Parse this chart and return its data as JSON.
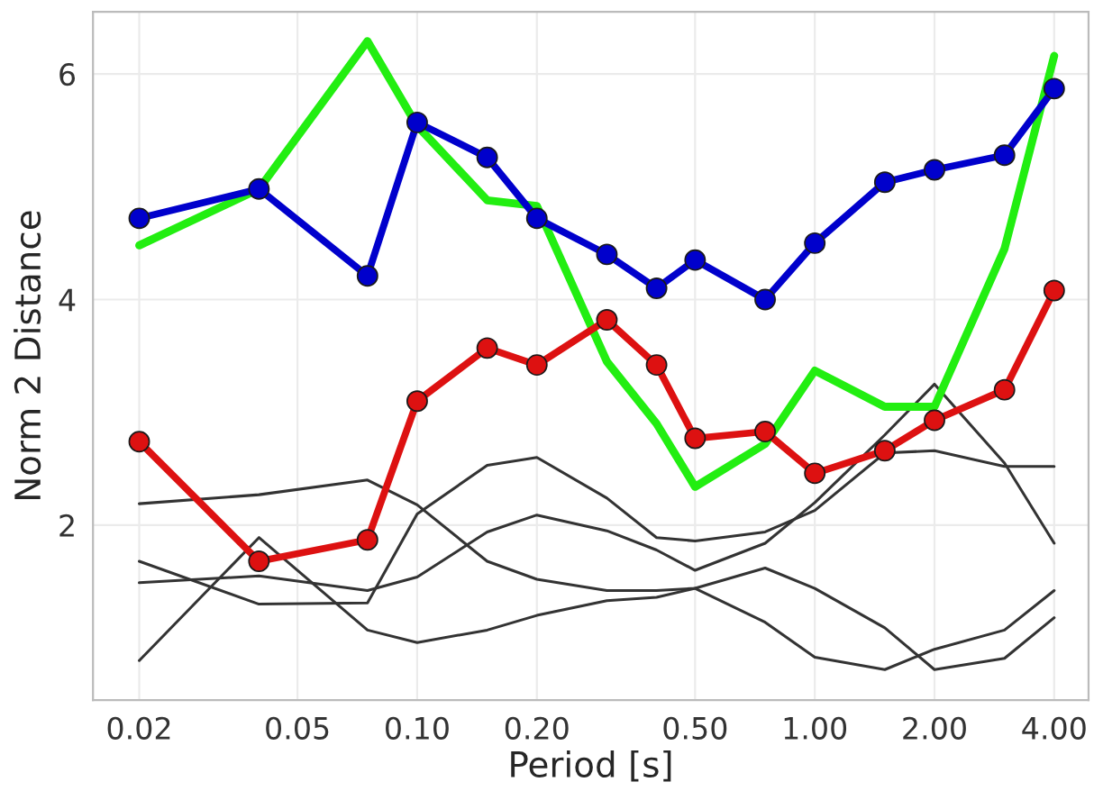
{
  "chart_data": {
    "type": "line",
    "xlabel": "Period [s]",
    "ylabel": "Norm 2 Distance",
    "x": [
      0.02,
      0.04,
      0.075,
      0.1,
      0.15,
      0.2,
      0.3,
      0.4,
      0.5,
      0.75,
      1.0,
      1.5,
      2.0,
      3.0,
      4.0
    ],
    "log": "x",
    "xlim": [
      0.0153,
      4.88
    ],
    "ylim": [
      0.45,
      6.55
    ],
    "xticks": [
      {
        "value": 0.02,
        "label": "0.02"
      },
      {
        "value": 0.05,
        "label": "0.05"
      },
      {
        "value": 0.1,
        "label": "0.10"
      },
      {
        "value": 0.2,
        "label": "0.20"
      },
      {
        "value": 0.5,
        "label": "0.50"
      },
      {
        "value": 1.0,
        "label": "1.00"
      },
      {
        "value": 2.0,
        "label": "2.00"
      },
      {
        "value": 4.0,
        "label": "4.00"
      }
    ],
    "yticks": [
      2,
      4,
      6
    ],
    "grid": true,
    "line_style": "solid",
    "series": [
      {
        "color": "#333333",
        "marker": "none",
        "values": [
          2.19,
          2.27,
          2.4,
          2.18,
          1.68,
          1.52,
          1.42,
          1.42,
          1.44,
          1.62,
          1.44,
          1.09,
          0.72,
          0.82,
          1.18
        ]
      },
      {
        "color": "#333333",
        "marker": "none",
        "values": [
          0.8,
          1.89,
          1.07,
          0.96,
          1.07,
          1.2,
          1.33,
          1.36,
          1.44,
          1.14,
          0.83,
          0.72,
          0.9,
          1.07,
          1.42
        ]
      },
      {
        "color": "#333333",
        "marker": "none",
        "values": [
          1.68,
          1.3,
          1.31,
          2.1,
          2.53,
          2.6,
          2.24,
          1.89,
          1.86,
          1.94,
          2.13,
          2.64,
          2.66,
          2.52,
          2.52
        ]
      },
      {
        "color": "#333333",
        "marker": "none",
        "values": [
          1.49,
          1.55,
          1.42,
          1.54,
          1.94,
          2.09,
          1.95,
          1.78,
          1.6,
          1.84,
          2.2,
          2.8,
          3.25,
          2.55,
          1.84
        ]
      },
      {
        "color": "#22ee11",
        "marker": "none",
        "values": [
          4.48,
          4.98,
          6.29,
          5.54,
          4.88,
          4.83,
          3.45,
          2.9,
          2.34,
          2.72,
          3.37,
          3.05,
          3.05,
          4.45,
          6.16
        ]
      },
      {
        "color": "#dd1111",
        "marker": "circle",
        "values": [
          2.74,
          1.68,
          1.87,
          3.1,
          3.57,
          3.42,
          3.82,
          3.42,
          2.77,
          2.83,
          2.46,
          2.66,
          2.93,
          3.2,
          4.08
        ]
      },
      {
        "color": "#0000cc",
        "marker": "circle",
        "values": [
          4.72,
          4.98,
          4.21,
          5.57,
          5.26,
          4.72,
          4.4,
          4.1,
          4.35,
          4.0,
          4.5,
          5.04,
          5.15,
          5.28,
          5.87
        ]
      }
    ]
  }
}
